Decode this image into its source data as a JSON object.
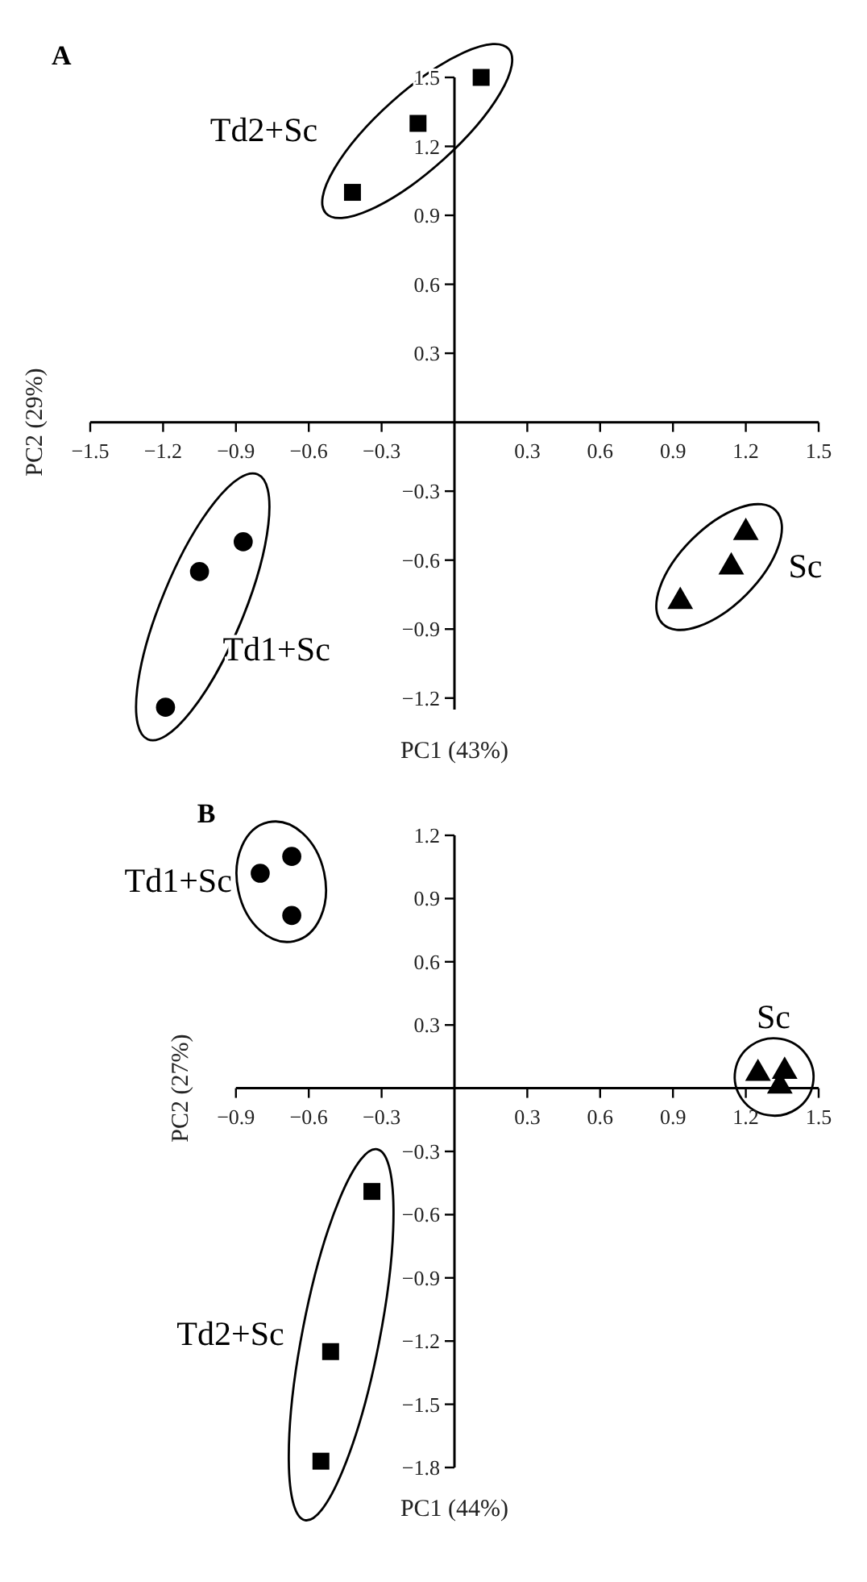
{
  "chart_data": [
    {
      "type": "scatter",
      "title": "A",
      "xlabel": "PC1 (43%)",
      "ylabel": "PC2 (29%)",
      "xlim": [
        -1.5,
        1.5
      ],
      "ylim": [
        -1.25,
        1.5
      ],
      "xticks": [
        -1.5,
        -1.2,
        -0.9,
        -0.6,
        -0.3,
        0.3,
        0.6,
        0.9,
        1.2,
        1.5
      ],
      "yticks": [
        -1.2,
        -0.9,
        -0.6,
        -0.3,
        0.3,
        0.6,
        0.9,
        1.2,
        1.5
      ],
      "series": [
        {
          "name": "Td2+Sc",
          "color": "#000000",
          "marker": "square",
          "x": [
            0.11,
            -0.15,
            -0.42
          ],
          "values": [
            1.5,
            1.3,
            1.0
          ]
        },
        {
          "name": "Td1+Sc",
          "color": "#000000",
          "marker": "circle",
          "x": [
            -0.87,
            -1.05,
            -1.19
          ],
          "values": [
            -0.52,
            -0.65,
            -1.24
          ]
        },
        {
          "name": "Sc",
          "color": "#000000",
          "marker": "triangle",
          "x": [
            1.2,
            1.14,
            0.93
          ],
          "values": [
            -0.48,
            -0.63,
            -0.78
          ]
        }
      ]
    },
    {
      "type": "scatter",
      "title": "B",
      "xlabel": "PC1 (44%)",
      "ylabel": "PC2 (27%)",
      "xlim": [
        -0.9,
        1.5
      ],
      "ylim": [
        -1.8,
        1.2
      ],
      "xticks": [
        -0.9,
        -0.6,
        -0.3,
        0.3,
        0.6,
        0.9,
        1.2,
        1.5
      ],
      "yticks": [
        -1.8,
        -1.5,
        -1.2,
        -0.9,
        -0.6,
        -0.3,
        0.3,
        0.6,
        0.9,
        1.2
      ],
      "series": [
        {
          "name": "Td1+Sc",
          "color": "#000000",
          "marker": "circle",
          "x": [
            -0.8,
            -0.67,
            -0.67
          ],
          "values": [
            1.02,
            1.1,
            0.82
          ]
        },
        {
          "name": "Sc",
          "color": "#000000",
          "marker": "triangle",
          "x": [
            1.25,
            1.36,
            1.34
          ],
          "values": [
            0.07,
            0.08,
            0.01
          ]
        },
        {
          "name": "Td2+Sc",
          "color": "#000000",
          "marker": "square",
          "x": [
            -0.34,
            -0.51,
            -0.55
          ],
          "values": [
            -0.49,
            -1.25,
            -1.77
          ]
        }
      ]
    }
  ]
}
